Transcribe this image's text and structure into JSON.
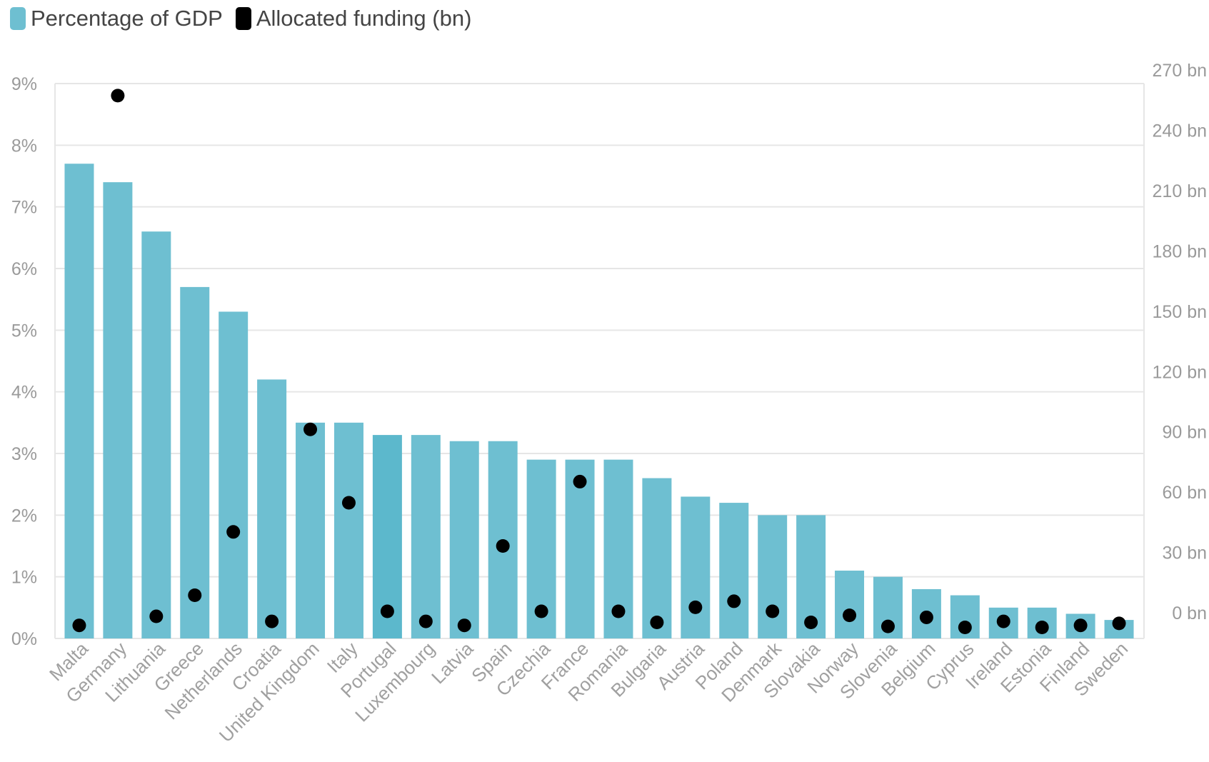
{
  "legend": {
    "gdp_label": "Percentage of GDP",
    "gdp_color": "#6ebfd1",
    "funding_label": "Allocated funding (bn)",
    "funding_color": "#000000"
  },
  "chart_data": {
    "type": "bar",
    "categories": [
      "Malta",
      "Germany",
      "Lithuania",
      "Greece",
      "Netherlands",
      "Croatia",
      "United Kingdom",
      "Italy",
      "Portugal",
      "Luxembourg",
      "Latvia",
      "Spain",
      "Czechia",
      "France",
      "Romania",
      "Bulgaria",
      "Austria",
      "Poland",
      "Denmark",
      "Slovakia",
      "Norway",
      "Slovenia",
      "Belgium",
      "Cyprus",
      "Ireland",
      "Estonia",
      "Finland",
      "Sweden"
    ],
    "series": [
      {
        "name": "Percentage of GDP",
        "type": "bar",
        "axis": "left",
        "values": [
          7.7,
          7.4,
          6.6,
          5.7,
          5.3,
          4.2,
          3.5,
          3.5,
          3.3,
          3.3,
          3.2,
          3.2,
          2.9,
          2.9,
          2.9,
          2.6,
          2.3,
          2.2,
          2.0,
          2.0,
          1.1,
          1.0,
          0.8,
          0.7,
          0.5,
          0.5,
          0.4,
          0.3
        ]
      },
      {
        "name": "Allocated funding (bn)",
        "type": "scatter",
        "axis": "right",
        "values": [
          0.5,
          264,
          5.0,
          15.5,
          47.0,
          2.5,
          98.0,
          61.5,
          7.5,
          2.5,
          0.5,
          40.0,
          7.5,
          72.0,
          7.5,
          2.0,
          9.5,
          12.5,
          7.5,
          2.0,
          5.5,
          0,
          4.5,
          -0.5,
          2.5,
          -0.5,
          0.5,
          1.5
        ]
      }
    ],
    "y_left": {
      "min": 0,
      "max": 9,
      "step": 1,
      "tick_labels": [
        "0%",
        "1%",
        "2%",
        "3%",
        "4%",
        "5%",
        "6%",
        "7%",
        "8%",
        "9%"
      ]
    },
    "y_right": {
      "min": -6,
      "max": 270,
      "tick_values": [
        0,
        30,
        60,
        90,
        120,
        150,
        180,
        210,
        240,
        270
      ],
      "tick_labels": [
        "0 bn",
        "30 bn",
        "60 bn",
        "90 bn",
        "120 bn",
        "150 bn",
        "180 bn",
        "210 bn",
        "240 bn",
        "270 bn"
      ]
    },
    "highlighted_category": "Portugal",
    "highlight_color": "#5cb8cc",
    "grid": true,
    "legend_position": "top-left"
  }
}
